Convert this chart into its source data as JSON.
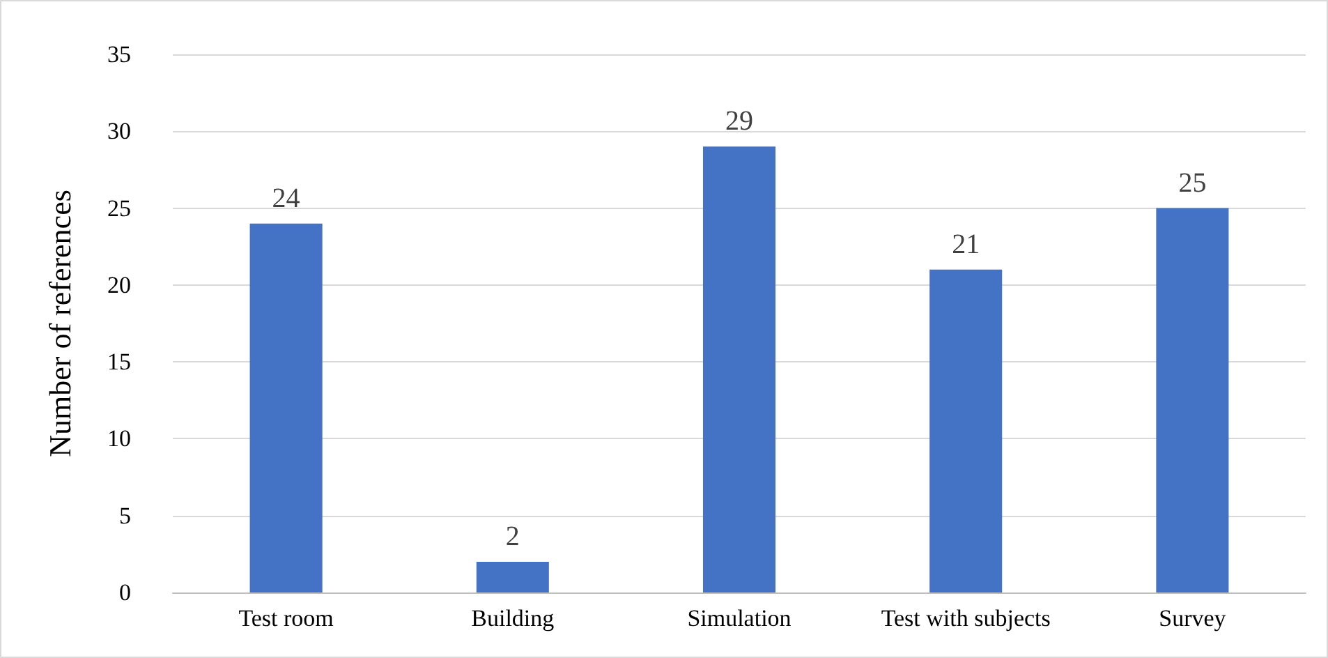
{
  "chart_data": {
    "type": "bar",
    "ylabel": "Number of references",
    "categories": [
      "Test room",
      "Building",
      "Simulation",
      "Test with subjects",
      "Survey"
    ],
    "values": [
      24,
      2,
      29,
      21,
      25
    ],
    "color": "#4472c4",
    "ylim": [
      0,
      35
    ],
    "yticks": [
      0,
      5,
      10,
      15,
      20,
      25,
      30,
      35
    ],
    "grid": "y",
    "data_labels": true
  }
}
